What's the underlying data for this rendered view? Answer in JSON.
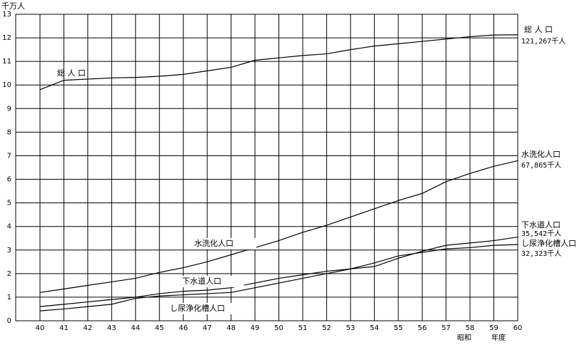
{
  "chart_data": {
    "type": "line",
    "y_axis_label": "千万人",
    "x_axis_label": [
      "昭和",
      "年度"
    ],
    "categories": [
      "40",
      "41",
      "42",
      "43",
      "44",
      "45",
      "46",
      "47",
      "48",
      "49",
      "50",
      "51",
      "52",
      "53",
      "54",
      "55",
      "56",
      "57",
      "58",
      "59",
      "60"
    ],
    "ylim": [
      0,
      13
    ],
    "yticks": [
      0,
      1,
      2,
      3,
      4,
      5,
      6,
      7,
      8,
      9,
      10,
      11,
      12,
      13
    ],
    "grid": true,
    "series": [
      {
        "name": "総 人 口",
        "color": "#000000",
        "end_label": "121,267千人",
        "values": [
          9.8,
          10.2,
          10.25,
          10.3,
          10.32,
          10.37,
          10.45,
          10.6,
          10.75,
          11.05,
          11.15,
          11.25,
          11.32,
          11.5,
          11.65,
          11.75,
          11.85,
          11.95,
          12.05,
          12.12,
          12.13
        ]
      },
      {
        "name": "水洗化人口",
        "color": "#000000",
        "end_label": "67,865千人",
        "values": [
          1.2,
          1.35,
          1.5,
          1.65,
          1.8,
          2.05,
          2.25,
          2.5,
          2.8,
          3.1,
          3.4,
          3.75,
          4.05,
          4.4,
          4.75,
          5.1,
          5.4,
          5.9,
          6.25,
          6.55,
          6.79
        ]
      },
      {
        "name": "下水道人口",
        "color": "#000000",
        "end_label": "35,542千人",
        "values": [
          0.6,
          0.7,
          0.8,
          0.9,
          1.0,
          1.15,
          1.25,
          1.3,
          1.4,
          1.6,
          1.8,
          1.95,
          2.1,
          2.2,
          2.3,
          2.65,
          2.95,
          3.2,
          3.3,
          3.4,
          3.55
        ]
      },
      {
        "name": "し尿浄化槽人口",
        "color": "#000000",
        "end_label": "32,323千人",
        "values": [
          0.42,
          0.5,
          0.6,
          0.7,
          0.95,
          1.05,
          1.1,
          1.15,
          1.2,
          1.4,
          1.6,
          1.8,
          2.0,
          2.2,
          2.45,
          2.75,
          2.9,
          3.05,
          3.1,
          3.2,
          3.23
        ]
      }
    ]
  }
}
